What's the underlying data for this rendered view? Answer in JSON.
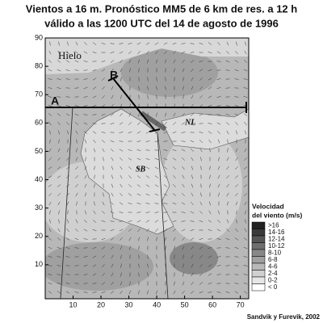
{
  "map": {
    "title": [
      "Vientos a 16 m. Pronóstico MM5 de 6 km de res. a 12 h",
      "válido a las 1200 UTC del 14 de agosto de 1996"
    ],
    "xlim": [
      0,
      73
    ],
    "xticks": [
      10,
      20,
      30,
      40,
      50,
      60,
      70
    ],
    "ylim": [
      -2,
      90
    ],
    "yticks": [
      10,
      20,
      30,
      40,
      50,
      60,
      70,
      80,
      90
    ],
    "labels": {
      "ice": "Hielo",
      "a": "A",
      "b": "B",
      "nl": "NL",
      "sb": "SB"
    },
    "legend": {
      "title": [
        "Velocidad",
        "del viento (m/s)"
      ],
      "entries": [
        {
          "label": ">16",
          "color": "#222222"
        },
        {
          "label": "14-16",
          "color": "#3a3a3a"
        },
        {
          "label": "12-14",
          "color": "#555555"
        },
        {
          "label": "10-12",
          "color": "#6e6e6e"
        },
        {
          "label": "8-10",
          "color": "#888888"
        },
        {
          "label": "6-8",
          "color": "#a0a0a0"
        },
        {
          "label": "4-6",
          "color": "#b8b8b8"
        },
        {
          "label": "2-4",
          "color": "#d0d0d0"
        },
        {
          "label": "0-2",
          "color": "#e6e6e6"
        },
        {
          "label": "< 0",
          "color": "#ffffff"
        }
      ]
    },
    "credit": "Sandvik y Furevik, 2002"
  }
}
